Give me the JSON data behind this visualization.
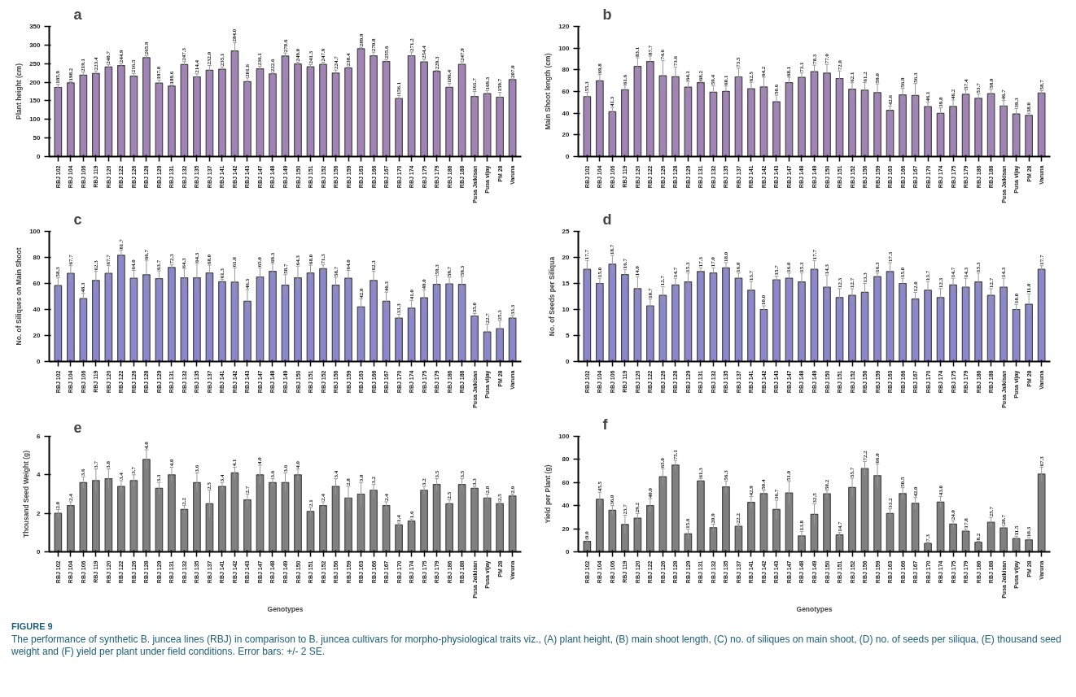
{
  "chart_data": [
    {
      "type": "bar",
      "title": "a",
      "ylabel": "Plant height (cm)",
      "categories": [
        "RBJ 102",
        "RBJ 104",
        "RBJ 106",
        "RBJ 119",
        "RBJ 120",
        "RBJ 122",
        "RBJ 126",
        "RBJ 128",
        "RBJ 129",
        "RBJ 131",
        "RBJ 132",
        "RBJ 135",
        "RBJ 137",
        "RBJ 141",
        "RBJ 142",
        "RBJ 143",
        "RBJ 147",
        "RBJ 148",
        "RBJ 149",
        "RBJ 150",
        "RBJ 151",
        "RBJ 152",
        "RBJ 156",
        "RBJ 159",
        "RBJ 163",
        "RBJ 166",
        "RBJ 167",
        "RBJ 170",
        "RBJ 174",
        "RBJ 175",
        "RBJ 179",
        "RBJ 186",
        "RBJ 188",
        "Pusa Jaikisan",
        "Pusa vijay",
        "PM 28",
        "Varuna"
      ],
      "values": [
        185.9,
        198.2,
        219.1,
        223.4,
        240.7,
        244.9,
        216.5,
        265.9,
        197.8,
        189.6,
        247.3,
        214.4,
        232.0,
        235.1,
        284.0,
        201.6,
        236.1,
        222.6,
        270.6,
        249.0,
        241.3,
        247.9,
        224.7,
        238.4,
        289.9,
        270.8,
        255.6,
        156.1,
        271.2,
        254.4,
        229.3,
        186.4,
        247.9,
        161.7,
        169.3,
        159.7,
        207.0
      ],
      "value_labels": [
        "185.9",
        "198.2",
        "219.1",
        "223.4",
        "240.7",
        "244.9",
        "216.5",
        "265.9",
        "197.8",
        "189.6",
        "247.3",
        "214.4",
        "232.0",
        "235.1",
        "284.0",
        "201.6",
        "236.1",
        "222.6",
        "270.6",
        "249.0",
        "241.3",
        "247.9",
        "224.7",
        "238.4",
        "289.9",
        "270.8",
        "255.6",
        "156.1",
        "271.2",
        "254.4",
        "229.3",
        "186.4",
        "247.9",
        "161.7",
        "169.3",
        "159.7",
        "207.0"
      ],
      "errors": [
        8,
        3,
        8,
        7,
        6,
        5,
        7,
        6,
        8,
        3,
        8,
        8,
        13,
        6,
        22,
        10,
        6,
        3,
        8,
        5,
        6,
        6,
        8,
        3,
        4,
        10,
        5,
        8,
        10,
        7,
        3,
        10,
        7,
        13,
        8,
        13,
        2
      ],
      "color": "#a283b5",
      "ylim": [
        0,
        350
      ],
      "yticks": [
        0,
        50,
        100,
        150,
        200,
        250,
        300,
        350
      ],
      "grid": false
    },
    {
      "type": "bar",
      "title": "b",
      "ylabel": "Main Shoot length (cm)",
      "categories": [
        "RBJ 102",
        "RBJ 104",
        "RBJ 106",
        "RBJ 119",
        "RBJ 120",
        "RBJ 122",
        "RBJ 126",
        "RBJ 128",
        "RBJ 129",
        "RBJ 131",
        "RBJ 132",
        "RBJ 135",
        "RBJ 137",
        "RBJ 141",
        "RBJ 142",
        "RBJ 143",
        "RBJ 147",
        "RBJ 148",
        "RBJ 149",
        "RBJ 150",
        "RBJ 151",
        "RBJ 152",
        "RBJ 156",
        "RBJ 159",
        "RBJ 163",
        "RBJ 166",
        "RBJ 167",
        "RBJ 170",
        "RBJ 174",
        "RBJ 175",
        "RBJ 179",
        "RBJ 186",
        "RBJ 188",
        "Pusa Jaikisan",
        "Pusa vijay",
        "PM 28",
        "Varuna"
      ],
      "values": [
        55.3,
        69.8,
        41.3,
        61.6,
        83.1,
        87.7,
        74.6,
        73.6,
        64.1,
        68.2,
        59.4,
        60.1,
        73.5,
        62.5,
        64.2,
        50.6,
        68.1,
        73.1,
        78.3,
        77.0,
        72.0,
        62.1,
        61.2,
        59.0,
        42.6,
        56.9,
        56.3,
        46.1,
        39.8,
        46.2,
        57.4,
        53.7,
        58.0,
        46.7,
        39.3,
        38.0,
        58.7
      ],
      "value_labels": [
        "55.3",
        "69.8",
        "41.3",
        "61.6",
        "83.1",
        "87.7",
        "74.6",
        "73.6",
        "64.1",
        "68.2",
        "59.4",
        "60.1",
        "73.5",
        "62.5",
        "64.2",
        "50.6",
        "68.1",
        "73.1",
        "78.3",
        "77.0",
        "72.0",
        "62.1",
        "61.2",
        "59.0",
        "42.6",
        "56.9",
        "56.3",
        "46.1",
        "39.8",
        "46.2",
        "57.4",
        "53.7",
        "58.0",
        "46.7",
        "39.3",
        "38.0",
        "58.7"
      ],
      "errors": [
        4,
        6,
        4,
        4,
        8,
        5,
        14,
        9,
        5,
        1,
        6,
        5,
        8,
        6,
        9,
        6,
        5,
        4,
        6,
        8,
        7,
        6,
        7,
        8,
        4,
        6,
        11,
        4,
        5,
        6,
        4,
        4,
        4,
        5,
        5,
        2,
        2
      ],
      "color": "#a283b5",
      "ylim": [
        0,
        120
      ],
      "yticks": [
        0,
        20,
        40,
        60,
        80,
        100,
        120
      ],
      "grid": false
    },
    {
      "type": "bar",
      "title": "c",
      "ylabel": "No. of Siliques on Main Shoot",
      "categories": [
        "RBJ 102",
        "RBJ 104",
        "RBJ 106",
        "RBJ 119",
        "RBJ 120",
        "RBJ 122",
        "RBJ 126",
        "RBJ 128",
        "RBJ 129",
        "RBJ 131",
        "RBJ 132",
        "RBJ 135",
        "RBJ 137",
        "RBJ 141",
        "RBJ 142",
        "RBJ 143",
        "RBJ 147",
        "RBJ 148",
        "RBJ 149",
        "RBJ 150",
        "RBJ 151",
        "RBJ 152",
        "RBJ 156",
        "RBJ 159",
        "RBJ 163",
        "RBJ 166",
        "RBJ 167",
        "RBJ 170",
        "RBJ 174",
        "RBJ 175",
        "RBJ 179",
        "RBJ 186",
        "RBJ 188",
        "Pusa Jaikisan",
        "Pusa vijay",
        "PM 28",
        "Varuna"
      ],
      "values": [
        58.3,
        67.7,
        48.3,
        62.3,
        67.7,
        81.7,
        64.0,
        66.7,
        63.7,
        72.3,
        64.3,
        64.3,
        68.0,
        61.3,
        61.0,
        46.3,
        65.0,
        69.3,
        58.7,
        64.3,
        68.0,
        71.3,
        58.7,
        64.0,
        42.0,
        62.3,
        46.3,
        33.3,
        41.0,
        49.0,
        59.3,
        59.7,
        59.3,
        35.0,
        22.7,
        25.3,
        33.3
      ],
      "value_labels": [
        "58.3",
        "67.7",
        "48.3",
        "62.3",
        "67.7",
        "81.7",
        "64.0",
        "66.7",
        "63.7",
        "72.3",
        "64.3",
        "64.3",
        "68.0",
        "61.3",
        "61.0",
        "46.3",
        "65.0",
        "69.3",
        "58.7",
        "64.3",
        "68.0",
        "71.3",
        "58.7",
        "64.0",
        "42.0",
        "62.3",
        "46.3",
        "33.3",
        "41.0",
        "49.0",
        "59.3",
        "59.7",
        "59.3",
        "35.0",
        "22.7",
        "25.3",
        "33.3"
      ],
      "errors": [
        6,
        6,
        4,
        7,
        6,
        4,
        6,
        11,
        6,
        2,
        7,
        11,
        6,
        2,
        11,
        9,
        7,
        6,
        8,
        9,
        6,
        3,
        6,
        6,
        6,
        7,
        7,
        3,
        6,
        6,
        7,
        5,
        6,
        2,
        6,
        6,
        2
      ],
      "color": "#8a87cc",
      "ylim": [
        0,
        100
      ],
      "yticks": [
        0,
        20,
        40,
        60,
        80,
        100
      ],
      "grid": false
    },
    {
      "type": "bar",
      "title": "d",
      "ylabel": "No. of Seeds per Siliqua",
      "categories": [
        "RBJ 102",
        "RBJ 104",
        "RBJ 106",
        "RBJ 119",
        "RBJ 120",
        "RBJ 122",
        "RBJ 126",
        "RBJ 128",
        "RBJ 129",
        "RBJ 131",
        "RBJ 132",
        "RBJ 135",
        "RBJ 137",
        "RBJ 141",
        "RBJ 142",
        "RBJ 143",
        "RBJ 147",
        "RBJ 148",
        "RBJ 149",
        "RBJ 150",
        "RBJ 151",
        "RBJ 152",
        "RBJ 156",
        "RBJ 159",
        "RBJ 163",
        "RBJ 166",
        "RBJ 167",
        "RBJ 170",
        "RBJ 174",
        "RBJ 175",
        "RBJ 179",
        "RBJ 186",
        "RBJ 188",
        "Pusa Jaikisan",
        "Pusa vijay",
        "PM 28",
        "Varuna"
      ],
      "values": [
        17.7,
        15.0,
        18.7,
        16.7,
        14.0,
        10.7,
        12.7,
        14.7,
        15.3,
        17.3,
        17.0,
        18.0,
        16.0,
        13.7,
        10.0,
        15.7,
        16.0,
        15.3,
        17.7,
        14.3,
        12.3,
        12.7,
        13.3,
        16.3,
        17.3,
        15.0,
        12.0,
        13.7,
        12.3,
        14.7,
        14.3,
        15.3,
        12.7,
        14.3,
        10.0,
        11.0,
        17.7
      ],
      "value_labels": [
        "17.7",
        "15.0",
        "18.7",
        "16.7",
        "14.0",
        "10.7",
        "12.7",
        "14.7",
        "15.3",
        "17.3",
        "17.0",
        "18.0",
        "16.0",
        "13.7",
        "10.0",
        "15.7",
        "16.0",
        "15.3",
        "17.7",
        "14.3",
        "12.3",
        "12.7",
        "13.3",
        "16.3",
        "17.3",
        "15.0",
        "12.0",
        "13.7",
        "12.3",
        "14.7",
        "14.3",
        "15.3",
        "12.7",
        "14.3",
        "10.0",
        "11.0",
        "17.7"
      ],
      "errors": [
        1.7,
        1.0,
        1.7,
        1.0,
        2.3,
        1.3,
        1.7,
        1.3,
        1.7,
        0.7,
        1.0,
        1.0,
        1.0,
        1.7,
        0.7,
        0.7,
        1.0,
        1.7,
        1.7,
        2.3,
        1.7,
        1.3,
        1.7,
        0.7,
        1.7,
        1.0,
        1.3,
        1.7,
        1.7,
        1.3,
        1.7,
        1.7,
        1.3,
        1.7,
        1.0,
        2.0,
        0.7
      ],
      "color": "#8a87cc",
      "ylim": [
        0,
        25
      ],
      "yticks": [
        0,
        5,
        10,
        15,
        20,
        25
      ],
      "grid": false
    },
    {
      "type": "bar",
      "title": "e",
      "xlabel": "Genotypes",
      "ylabel": "Thousand Seed Weight (g)",
      "categories": [
        "RBJ 102",
        "RBJ 104",
        "RBJ 106",
        "RBJ 119",
        "RBJ 120",
        "RBJ 122",
        "RBJ 126",
        "RBJ 128",
        "RBJ 129",
        "RBJ 131",
        "RBJ 132",
        "RBJ 135",
        "RBJ 137",
        "RBJ 141",
        "RBJ 142",
        "RBJ 143",
        "RBJ 147",
        "RBJ 148",
        "RBJ 149",
        "RBJ 150",
        "RBJ 151",
        "RBJ 152",
        "RBJ 156",
        "RBJ 159",
        "RBJ 163",
        "RBJ 166",
        "RBJ 167",
        "RBJ 170",
        "RBJ 174",
        "RBJ 175",
        "RBJ 179",
        "RBJ 186",
        "RBJ 188",
        "Pusa Jaikisan",
        "Pusa vijay",
        "PM 28",
        "Varuna"
      ],
      "values": [
        2.0,
        2.4,
        3.6,
        3.7,
        3.8,
        3.4,
        3.7,
        4.8,
        3.3,
        4.0,
        2.2,
        3.6,
        2.5,
        3.4,
        4.1,
        2.7,
        4.0,
        3.6,
        3.6,
        4.0,
        2.1,
        2.4,
        3.4,
        2.8,
        3.0,
        3.2,
        2.4,
        1.4,
        1.6,
        3.2,
        3.5,
        2.5,
        3.5,
        3.3,
        2.8,
        2.5,
        2.9
      ],
      "value_labels": [
        "2.0",
        "2.4",
        "3.6",
        "3.7",
        "3.8",
        "3.4",
        "3.7",
        "4.8",
        "3.3",
        "4.0",
        "2.2",
        "3.6",
        "2.5",
        "3.4",
        "4.1",
        "2.7",
        "4.0",
        "3.6",
        "3.6",
        "4.0",
        "2.1",
        "2.4",
        "3.4",
        "2.8",
        "3.0",
        "3.2",
        "2.4",
        "1.4",
        "1.6",
        "3.2",
        "3.5",
        "2.5",
        "3.5",
        "3.3",
        "2.8",
        "2.5",
        "2.9"
      ],
      "errors": [
        0.2,
        0.2,
        0.3,
        0.6,
        0.5,
        0.3,
        0.3,
        0.5,
        0.3,
        0.4,
        0.2,
        0.5,
        0.7,
        0.2,
        0.3,
        0.3,
        0.5,
        0.2,
        0.5,
        0.3,
        0.2,
        0.2,
        0.4,
        0.6,
        0.6,
        0.3,
        0.2,
        0.1,
        0.1,
        0.2,
        0.3,
        0.2,
        0.3,
        0.1,
        0.2,
        0.1,
        0.1
      ],
      "color": "#808080",
      "ylim": [
        0,
        6
      ],
      "yticks": [
        0,
        2,
        4,
        6
      ],
      "grid": false
    },
    {
      "type": "bar",
      "title": "f",
      "xlabel": "Genotypes",
      "ylabel": "Yield per Plant (g)",
      "categories": [
        "RBJ 102",
        "RBJ 104",
        "RBJ 106",
        "RBJ 119",
        "RBJ 120",
        "RBJ 122",
        "RBJ 126",
        "RBJ 128",
        "RBJ 129",
        "RBJ 131",
        "RBJ 132",
        "RBJ 135",
        "RBJ 137",
        "RBJ 141",
        "RBJ 142",
        "RBJ 143",
        "RBJ 147",
        "RBJ 148",
        "RBJ 149",
        "RBJ 150",
        "RBJ 151",
        "RBJ 152",
        "RBJ 156",
        "RBJ 159",
        "RBJ 163",
        "RBJ 166",
        "RBJ 167",
        "RBJ 170",
        "RBJ 174",
        "RBJ 175",
        "RBJ 179",
        "RBJ 186",
        "RBJ 188",
        "Pusa Jaikisan",
        "Pusa vijay",
        "PM 28",
        "Varuna"
      ],
      "values": [
        9.0,
        45.5,
        36.0,
        23.7,
        29.2,
        40.0,
        65.0,
        75.1,
        15.6,
        61.3,
        20.9,
        56.3,
        22.2,
        42.9,
        50.4,
        36.7,
        51.0,
        13.8,
        32.5,
        50.2,
        14.7,
        55.7,
        72.2,
        66.0,
        33.2,
        50.5,
        42.0,
        7.3,
        43.0,
        24.0,
        17.8,
        8.2,
        25.7,
        20.7,
        11.5,
        10.3,
        67.3
      ],
      "value_labels": [
        "9.0",
        "45.5",
        "36.0",
        "23.7",
        "29.2",
        "40.0",
        "65.0",
        "75.1",
        "15.6",
        "61.3",
        "20.9",
        "56.3",
        "22.2",
        "42.9",
        "50.4",
        "36.7",
        "51.0",
        "13.8",
        "32.5",
        "50.2",
        "14.7",
        "55.7",
        "72.2",
        "66.0",
        "33.2",
        "50.5",
        "42.0",
        "7.3",
        "43.0",
        "24.0",
        "17.8",
        "8.2",
        "25.7",
        "20.7",
        "11.5",
        "10.3",
        "67.3"
      ],
      "errors": [
        2,
        6,
        4,
        8,
        4,
        6,
        7,
        4,
        4,
        2,
        3,
        5,
        2,
        5,
        3,
        8,
        10,
        4,
        9,
        3,
        2,
        8,
        6,
        10,
        4,
        5,
        5,
        1,
        5,
        3,
        2,
        1,
        4,
        2,
        2,
        2,
        6
      ],
      "color": "#808080",
      "ylim": [
        0,
        100
      ],
      "yticks": [
        0,
        20,
        40,
        60,
        80,
        100
      ],
      "grid": false,
      "annotations": [
        "FIGURE 9",
        "The performance of synthetic B. juncea lines (RBJ) in comparison to B. juncea cultivars for morpho-physiological traits viz., (A) plant height, (B) main shoot length, (C) no. of siliques on main shoot, (D) no. of seeds per siliqua, (E) thousand seed weight and (F) yield per plant under field conditions. Error bars: +/- 2 SE."
      ]
    }
  ]
}
